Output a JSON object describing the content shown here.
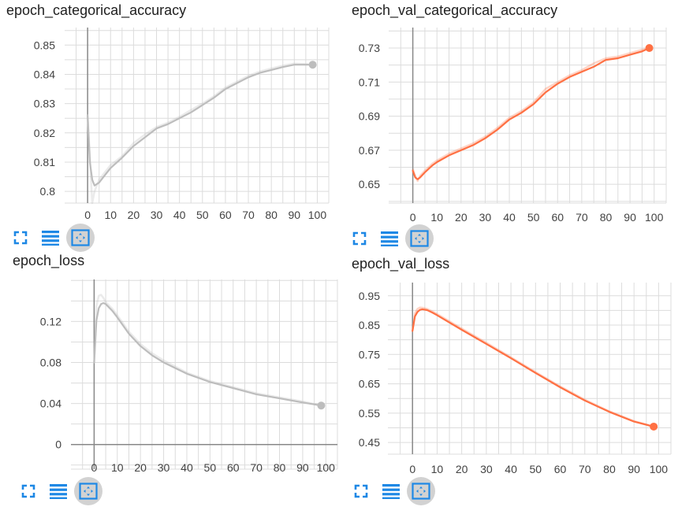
{
  "accent": "#ff7043",
  "train_color": "#bdbdbd",
  "icons": [
    "fullscreen-icon",
    "list-icon",
    "fit-domain-icon"
  ],
  "chart_data": [
    {
      "type": "line",
      "title": "epoch_categorical_accuracy",
      "color": "#bdbdbd",
      "xlim": [
        -10,
        105
      ],
      "ylim": [
        0.796,
        0.856
      ],
      "xticks": [
        0,
        10,
        20,
        30,
        40,
        50,
        60,
        70,
        80,
        90,
        100
      ],
      "yticks": [
        0.8,
        0.81,
        0.82,
        0.83,
        0.84,
        0.85
      ],
      "ytick_labels": [
        "0.8",
        "0.81",
        "0.82",
        "0.83",
        "0.84",
        "0.85"
      ],
      "x": [
        0,
        1,
        2,
        3,
        5,
        8,
        10,
        15,
        20,
        25,
        30,
        35,
        40,
        45,
        50,
        55,
        60,
        65,
        70,
        75,
        80,
        85,
        90,
        95,
        98
      ],
      "y": [
        0.826,
        0.81,
        0.804,
        0.802,
        0.803,
        0.806,
        0.808,
        0.8115,
        0.8155,
        0.8185,
        0.8215,
        0.823,
        0.825,
        0.827,
        0.8295,
        0.832,
        0.835,
        0.837,
        0.839,
        0.8405,
        0.8415,
        0.8425,
        0.8433,
        0.8433,
        0.8433
      ],
      "raw_y": [
        0.826,
        0.812,
        0.796,
        0.8,
        0.804,
        0.807,
        0.809,
        0.812,
        0.8165,
        0.8195,
        0.822,
        0.8235,
        0.8255,
        0.8278,
        0.83,
        0.8325,
        0.8355,
        0.8375,
        0.8395,
        0.841,
        0.842,
        0.843,
        0.8437,
        0.8435,
        0.8433
      ],
      "end_point": [
        98,
        0.8433
      ],
      "active_toolbar_button": 2
    },
    {
      "type": "line",
      "title": "epoch_val_categorical_accuracy",
      "color": "#ff7043",
      "xlim": [
        -10,
        105
      ],
      "ylim": [
        0.639,
        0.742
      ],
      "xticks": [
        0,
        10,
        20,
        30,
        40,
        50,
        60,
        70,
        80,
        90,
        100
      ],
      "yticks": [
        0.65,
        0.67,
        0.69,
        0.71,
        0.73
      ],
      "ytick_labels": [
        "0.65",
        "0.67",
        "0.69",
        "0.71",
        "0.73"
      ],
      "x": [
        0,
        1,
        2,
        3,
        5,
        8,
        10,
        15,
        20,
        25,
        30,
        35,
        40,
        45,
        50,
        55,
        60,
        65,
        70,
        75,
        80,
        85,
        90,
        95,
        98
      ],
      "y": [
        0.658,
        0.654,
        0.653,
        0.654,
        0.657,
        0.661,
        0.663,
        0.667,
        0.67,
        0.673,
        0.677,
        0.682,
        0.688,
        0.692,
        0.697,
        0.704,
        0.709,
        0.713,
        0.716,
        0.719,
        0.723,
        0.724,
        0.726,
        0.728,
        0.73
      ],
      "raw_y": [
        0.659,
        0.655,
        0.652,
        0.655,
        0.658,
        0.662,
        0.664,
        0.668,
        0.671,
        0.674,
        0.678,
        0.683,
        0.689,
        0.693,
        0.698,
        0.706,
        0.71,
        0.714,
        0.717,
        0.721,
        0.724,
        0.725,
        0.727,
        0.729,
        0.73
      ],
      "end_point": [
        98,
        0.73
      ],
      "active_toolbar_button": 2
    },
    {
      "type": "line",
      "title": "epoch_loss",
      "color": "#bdbdbd",
      "xlim": [
        -10,
        105
      ],
      "ylim": [
        -0.024,
        0.161
      ],
      "xticks": [
        0,
        10,
        20,
        30,
        40,
        50,
        60,
        70,
        80,
        90,
        100
      ],
      "yticks": [
        0,
        0.04,
        0.08,
        0.12
      ],
      "ytick_labels": [
        "0",
        "0.04",
        "0.08",
        "0.12"
      ],
      "x": [
        0,
        1,
        2,
        3,
        4,
        5,
        8,
        10,
        15,
        20,
        25,
        30,
        40,
        50,
        60,
        70,
        80,
        90,
        98
      ],
      "y": [
        0.08,
        0.121,
        0.133,
        0.137,
        0.138,
        0.137,
        0.13,
        0.124,
        0.108,
        0.096,
        0.087,
        0.08,
        0.069,
        0.061,
        0.055,
        0.049,
        0.045,
        0.041,
        0.038
      ],
      "raw_y": [
        0.08,
        0.135,
        0.145,
        0.146,
        0.143,
        0.139,
        0.132,
        0.126,
        0.11,
        0.098,
        0.089,
        0.082,
        0.07,
        0.062,
        0.056,
        0.05,
        0.046,
        0.042,
        0.038
      ],
      "end_point": [
        98,
        0.038
      ],
      "active_toolbar_button": 2
    },
    {
      "type": "line",
      "title": "epoch_val_loss",
      "color": "#ff7043",
      "xlim": [
        -10,
        105
      ],
      "ylim": [
        0.41,
        0.995
      ],
      "xticks": [
        0,
        10,
        20,
        30,
        40,
        50,
        60,
        70,
        80,
        90,
        100
      ],
      "yticks": [
        0.45,
        0.55,
        0.65,
        0.75,
        0.85,
        0.95
      ],
      "ytick_labels": [
        "0.45",
        "0.55",
        "0.65",
        "0.75",
        "0.85",
        "0.95"
      ],
      "x": [
        0,
        1,
        2,
        3,
        4,
        6,
        8,
        10,
        20,
        30,
        40,
        50,
        60,
        70,
        80,
        90,
        98
      ],
      "y": [
        0.83,
        0.88,
        0.895,
        0.902,
        0.904,
        0.901,
        0.893,
        0.884,
        0.834,
        0.786,
        0.737,
        0.687,
        0.638,
        0.593,
        0.554,
        0.521,
        0.504
      ],
      "raw_y": [
        0.83,
        0.89,
        0.905,
        0.91,
        0.909,
        0.905,
        0.897,
        0.888,
        0.838,
        0.79,
        0.74,
        0.69,
        0.641,
        0.596,
        0.556,
        0.523,
        0.504
      ],
      "end_point": [
        98,
        0.504
      ],
      "active_toolbar_button": 2
    }
  ]
}
